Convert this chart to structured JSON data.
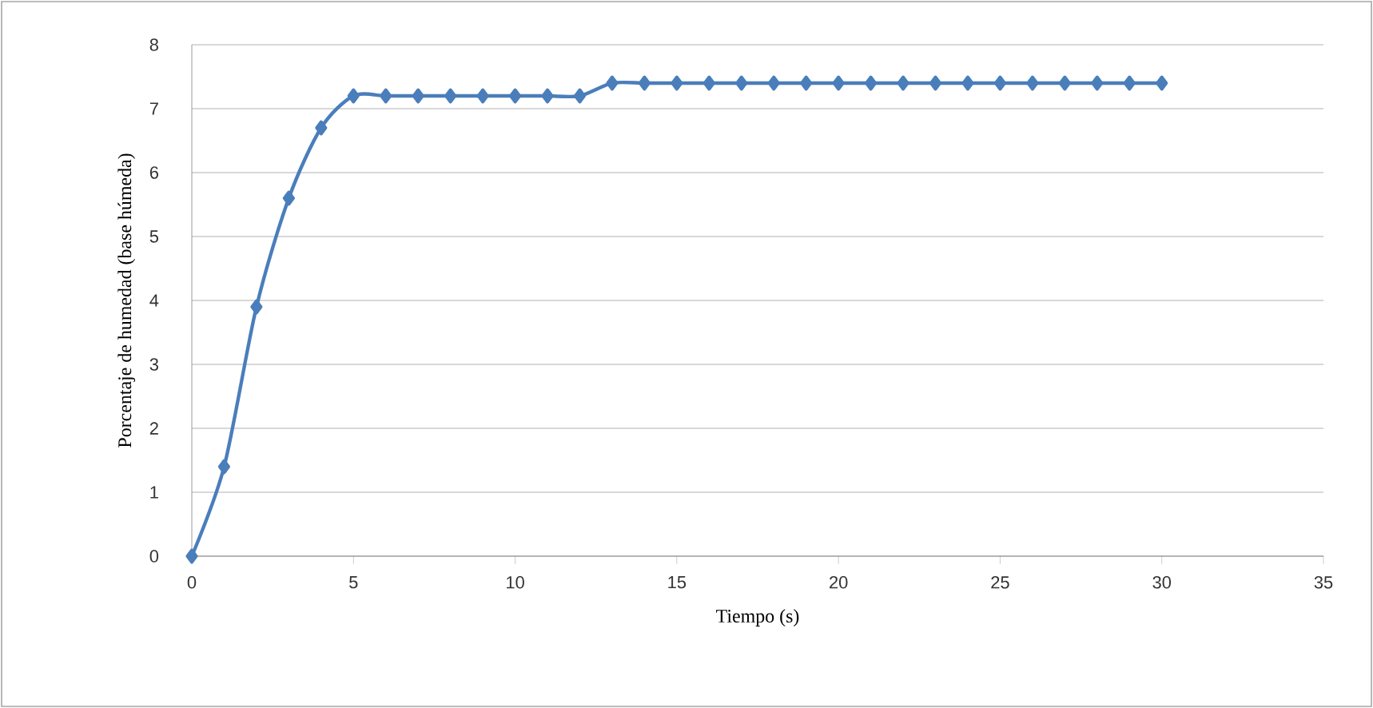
{
  "chart_data": {
    "type": "line",
    "xlabel": "Tiempo (s)",
    "ylabel": "Porcentaje de humedad (base húmeda)",
    "x": [
      0,
      1,
      2,
      3,
      4,
      5,
      6,
      7,
      8,
      9,
      10,
      11,
      12,
      13,
      14,
      15,
      16,
      17,
      18,
      19,
      20,
      21,
      22,
      23,
      24,
      25,
      26,
      27,
      28,
      29,
      30
    ],
    "series": [
      {
        "color": "#4a7ebb",
        "values": [
          0,
          1.4,
          3.9,
          5.6,
          6.7,
          7.2,
          7.2,
          7.2,
          7.2,
          7.2,
          7.2,
          7.2,
          7.2,
          7.4,
          7.4,
          7.4,
          7.4,
          7.4,
          7.4,
          7.4,
          7.4,
          7.4,
          7.4,
          7.4,
          7.4,
          7.4,
          7.4,
          7.4,
          7.4,
          7.4,
          7.4
        ]
      }
    ],
    "xlim": [
      0,
      35
    ],
    "ylim": [
      0,
      8
    ],
    "xticks": [
      0,
      5,
      10,
      15,
      20,
      25,
      30,
      35
    ],
    "yticks": [
      0,
      1,
      2,
      3,
      4,
      5,
      6,
      7,
      8
    ],
    "grid": "y",
    "marker": "diamond",
    "line_style": "solid"
  }
}
